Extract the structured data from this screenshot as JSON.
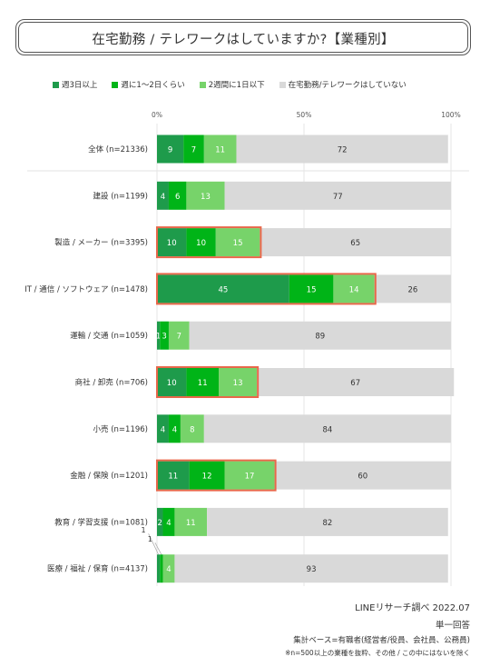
{
  "title": "在宅勤務 / テレワークはしていますか?【業種別】",
  "legend": [
    {
      "label": "週3日以上",
      "color": "#1e9b4b"
    },
    {
      "label": "週に1〜2日くらい",
      "color": "#00b417"
    },
    {
      "label": "2週間に1日以下",
      "color": "#77d36a"
    },
    {
      "label": "在宅勤務/テレワークはしていない",
      "color": "#d9d9d9"
    }
  ],
  "chart_data": {
    "type": "bar",
    "orientation": "horizontal",
    "stacked": true,
    "xlim": [
      0,
      100
    ],
    "x_ticks": [
      "0%",
      "50%",
      "100%"
    ],
    "categories": [
      "全体 (n=21336)",
      "建設 (n=1199)",
      "製造 / メーカー (n=3395)",
      "IT / 通信 / ソフトウェア (n=1478)",
      "運輸 / 交通 (n=1059)",
      "商社 / 卸売 (n=706)",
      "小売 (n=1196)",
      "金融 / 保険 (n=1201)",
      "教育 / 学習支援 (n=1081)",
      "医療 / 福祉 / 保育 (n=4137)"
    ],
    "series": [
      {
        "name": "週3日以上",
        "color": "#1e9b4b",
        "values": [
          9,
          4,
          10,
          45,
          1,
          10,
          4,
          11,
          2,
          1
        ]
      },
      {
        "name": "週に1〜2日くらい",
        "color": "#00b417",
        "values": [
          7,
          6,
          10,
          15,
          3,
          11,
          4,
          12,
          4,
          1
        ]
      },
      {
        "name": "2週間に1日以下",
        "color": "#77d36a",
        "values": [
          11,
          13,
          15,
          14,
          7,
          13,
          8,
          17,
          11,
          4
        ]
      },
      {
        "name": "在宅勤務/テレワークはしていない",
        "color": "#d9d9d9",
        "values": [
          72,
          77,
          65,
          26,
          89,
          67,
          84,
          60,
          82,
          93
        ]
      }
    ],
    "highlighted_categories": [
      "製造 / メーカー (n=3395)",
      "IT / 通信 / ソフトウェア (n=1478)",
      "商社 / 卸売 (n=706)",
      "金融 / 保険 (n=1201)"
    ],
    "highlight_color": "#e8674a",
    "callouts": [
      {
        "category": "医療 / 福祉 / 保育 (n=4137)",
        "series": "週3日以上",
        "text": "1"
      },
      {
        "category": "医療 / 福祉 / 保育 (n=4137)",
        "series": "週に1〜2日くらい",
        "text": "1"
      }
    ]
  },
  "footer": {
    "source": "LINEリサーチ調べ 2022.07",
    "answer_type": "単一回答",
    "base": "集計ベース=有職者(経営者/役員、会社員、公務員)",
    "note": "※n=500以上の業種を抜粋、その他 / この中にはないを除く"
  }
}
